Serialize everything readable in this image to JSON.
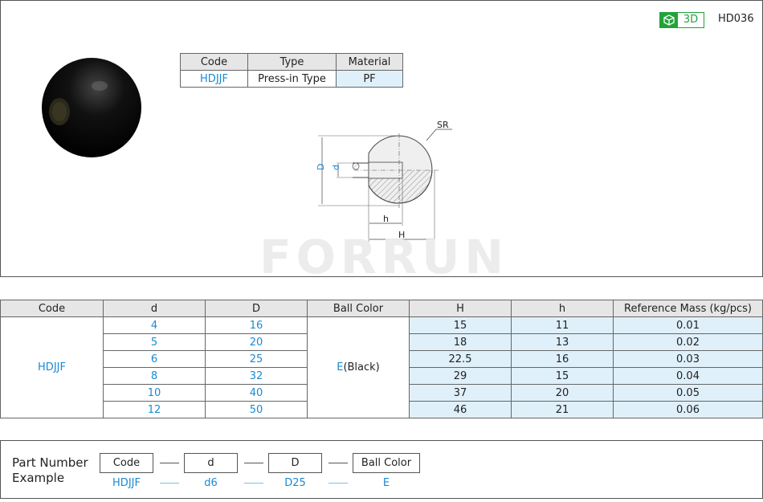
{
  "header": {
    "badge_3d": "3D",
    "product_code": "HD036"
  },
  "watermark": "FORRUN",
  "spec_table": {
    "headers": [
      "Code",
      "Type",
      "Material"
    ],
    "row": [
      "HDJJF",
      "Press-in Type",
      "PF"
    ]
  },
  "drawing": {
    "labels": {
      "sr": "SR",
      "D": "D",
      "d": "d",
      "h": "h",
      "H": "H"
    }
  },
  "dim_table": {
    "headers": [
      "Code",
      "d",
      "D",
      "Ball Color",
      "H",
      "h",
      "Reference Mass (kg/pcs)"
    ],
    "code": "HDJJF",
    "ball_color_code": "E",
    "ball_color_name": "(Black)",
    "rows": [
      [
        "4",
        "16",
        "15",
        "11",
        "0.01"
      ],
      [
        "5",
        "20",
        "18",
        "13",
        "0.02"
      ],
      [
        "6",
        "25",
        "22.5",
        "16",
        "0.03"
      ],
      [
        "8",
        "32",
        "29",
        "15",
        "0.04"
      ],
      [
        "10",
        "40",
        "37",
        "20",
        "0.05"
      ],
      [
        "12",
        "50",
        "46",
        "21",
        "0.06"
      ]
    ]
  },
  "part_number": {
    "title_1": "Part Number",
    "title_2": "Example",
    "boxes": [
      "Code",
      "d",
      "D",
      "Ball Color"
    ],
    "values": [
      "HDJJF",
      "d6",
      "D25",
      "E"
    ]
  },
  "colors": {
    "accent_blue": "#1a8ad4",
    "green": "#22a33a",
    "highlight": "#e0f0fb"
  }
}
